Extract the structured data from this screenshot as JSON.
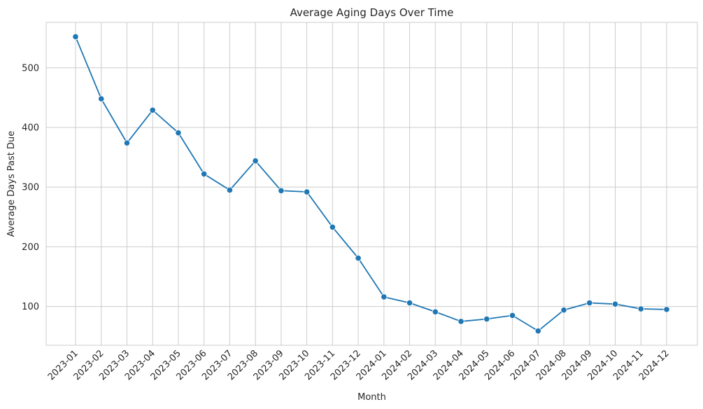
{
  "chart_data": {
    "type": "line",
    "title": "Average Aging Days Over Time",
    "xlabel": "Month",
    "ylabel": "Average Days Past Due",
    "categories": [
      "2023-01",
      "2023-02",
      "2023-03",
      "2023-04",
      "2023-05",
      "2023-06",
      "2023-07",
      "2023-08",
      "2023-09",
      "2023-10",
      "2023-11",
      "2023-12",
      "2024-01",
      "2024-02",
      "2024-03",
      "2024-04",
      "2024-05",
      "2024-06",
      "2024-07",
      "2024-08",
      "2024-09",
      "2024-10",
      "2024-11",
      "2024-12"
    ],
    "series": [
      {
        "values": [
          552,
          448,
          374,
          429,
          391,
          322,
          295,
          344,
          294,
          292,
          233,
          181,
          116,
          106,
          91,
          75,
          79,
          85,
          59,
          94,
          106,
          104,
          96,
          95
        ],
        "color": "#1f77b4",
        "marker": "circle"
      }
    ],
    "yticks": [
      100,
      200,
      300,
      400,
      500
    ],
    "ylim": [
      35,
      576
    ],
    "grid": true,
    "legend": "none"
  }
}
